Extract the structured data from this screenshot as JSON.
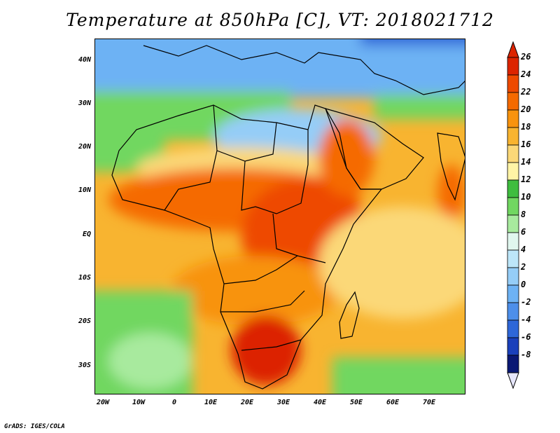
{
  "title": "Temperature at 850hPa [C], VT: 2018021712",
  "footer": "GrADS: IGES/COLA",
  "lat_labels": [
    "40N",
    "30N",
    "20N",
    "10N",
    "EQ",
    "10S",
    "20S",
    "30S"
  ],
  "lon_labels": [
    "20W",
    "10W",
    "0",
    "10E",
    "20E",
    "30E",
    "40E",
    "50E",
    "60E",
    "70E"
  ],
  "colorbar": {
    "labels": [
      "26",
      "24",
      "22",
      "20",
      "18",
      "16",
      "14",
      "12",
      "10",
      "8",
      "6",
      "4",
      "2",
      "0",
      "-2",
      "-4",
      "-6",
      "-8"
    ],
    "colors": [
      "#dc2400",
      "#ee4a00",
      "#f56a00",
      "#f8930e",
      "#f8b430",
      "#fbd878",
      "#fff4a6",
      "#3fbd3f",
      "#71d761",
      "#a8ea9e",
      "#e0f6ee",
      "#bde6f9",
      "#95cdf7",
      "#6db2f4",
      "#4d8fea",
      "#2e67d8",
      "#1a40bb",
      "#0a1874"
    ]
  },
  "map": {
    "extent_lon": [
      -20,
      80
    ],
    "extent_lat": [
      -37,
      45
    ]
  }
}
